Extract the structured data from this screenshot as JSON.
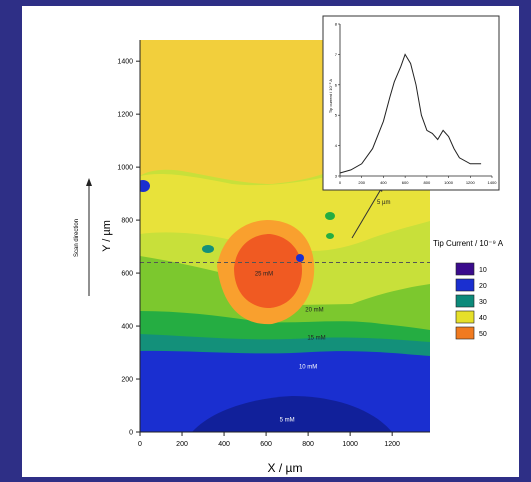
{
  "chart_data": [
    {
      "type": "heatmap",
      "title": "",
      "xlabel": "X / µm",
      "ylabel": "Y / µm",
      "side_label": "Scan direction",
      "xlim": [
        0,
        1380
      ],
      "ylim": [
        0,
        1480
      ],
      "x_ticks": [
        0,
        200,
        400,
        600,
        800,
        1000,
        1200
      ],
      "y_ticks": [
        0,
        200,
        400,
        600,
        800,
        1000,
        1200,
        1400
      ],
      "scan_line_y": 640,
      "colorbar": {
        "title": "Tip Current / 10⁻⁹ A",
        "levels": [
          {
            "value": "10",
            "color": "#3a0b8c"
          },
          {
            "value": "20",
            "color": "#1a2fd0"
          },
          {
            "value": "30",
            "color": "#0c8a7a"
          },
          {
            "value": "40",
            "color": "#e6e02a"
          },
          {
            "value": "50",
            "color": "#f07a20"
          }
        ]
      },
      "annotations": [
        {
          "text": "25 mM",
          "x": 590,
          "y": 590
        },
        {
          "text": "20 mM",
          "x": 830,
          "y": 455
        },
        {
          "text": "15 mM",
          "x": 840,
          "y": 350
        },
        {
          "text": "10 mM",
          "x": 800,
          "y": 240
        },
        {
          "text": "5 mM",
          "x": 700,
          "y": 40
        },
        {
          "text": "5 µm",
          "x": 1160,
          "y": 860
        }
      ]
    },
    {
      "type": "line",
      "title": "",
      "xlabel": "",
      "ylabel": "Tip current / 10⁻⁹ A",
      "xlim": [
        0,
        1400
      ],
      "ylim": [
        3,
        8
      ],
      "x_ticks": [
        0,
        200,
        400,
        600,
        800,
        1000,
        1200,
        1400
      ],
      "y_ticks": [
        3,
        4,
        5,
        6,
        7,
        8
      ],
      "series": [
        {
          "x": [
            0,
            100,
            200,
            300,
            400,
            460,
            500,
            560,
            600,
            650,
            700,
            750,
            800,
            850,
            900,
            950,
            1000,
            1050,
            1100,
            1200,
            1300
          ],
          "y": [
            3.1,
            3.2,
            3.4,
            3.9,
            4.8,
            5.6,
            6.1,
            6.6,
            7.0,
            6.7,
            6.0,
            5.0,
            4.5,
            4.4,
            4.2,
            4.5,
            4.3,
            3.9,
            3.6,
            3.4,
            3.4
          ]
        }
      ]
    }
  ]
}
